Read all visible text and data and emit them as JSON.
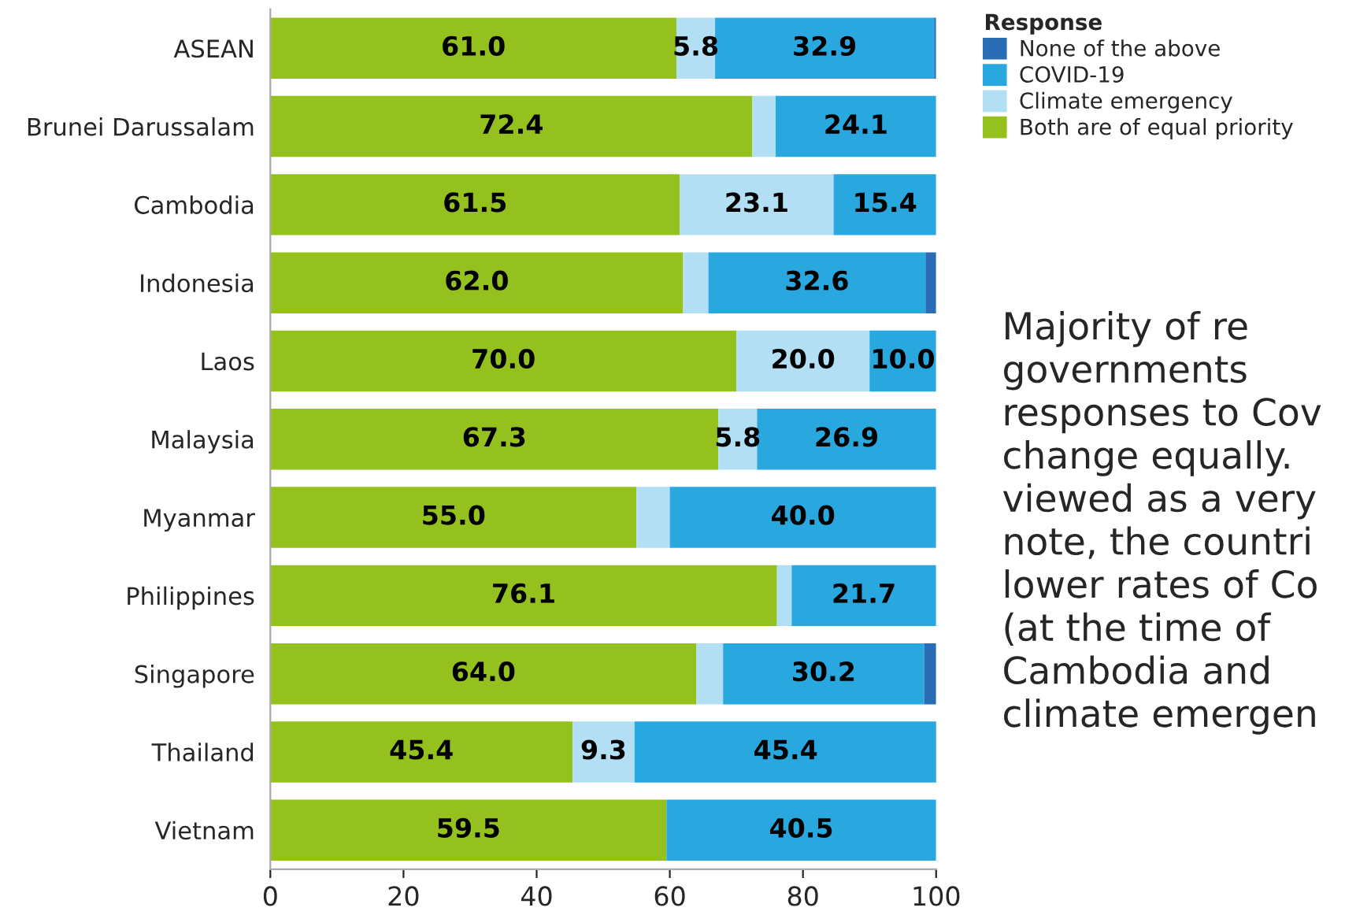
{
  "chart_data": {
    "type": "bar",
    "orientation": "horizontal",
    "stacked": true,
    "categories": [
      "ASEAN",
      "Brunei Darussalam",
      "Cambodia",
      "Indonesia",
      "Laos",
      "Malaysia",
      "Myanmar",
      "Philippines",
      "Singapore",
      "Thailand",
      "Vietnam"
    ],
    "series": [
      {
        "name": "Both are of equal priority",
        "color": "#95c11f",
        "values": [
          61.0,
          72.4,
          61.5,
          62.0,
          70.0,
          67.3,
          55.0,
          76.1,
          64.0,
          45.4,
          59.5
        ],
        "value_labels": [
          "61.0",
          "72.4",
          "61.5",
          "62.0",
          "70.0",
          "67.3",
          "55.0",
          "76.1",
          "64.0",
          "45.4",
          "59.5"
        ]
      },
      {
        "name": "Climate emergency",
        "color": "#b3dff5",
        "values": [
          5.8,
          3.5,
          23.1,
          3.8,
          20.0,
          5.8,
          5.0,
          2.2,
          4.0,
          9.3,
          0
        ],
        "value_labels": [
          "5.8",
          null,
          "23.1",
          null,
          "20.0",
          "5.8",
          null,
          null,
          null,
          "9.3",
          null
        ]
      },
      {
        "name": "COVID-19",
        "color": "#29a8e0",
        "values": [
          32.9,
          24.1,
          15.4,
          32.6,
          10.0,
          26.9,
          40.0,
          21.7,
          30.2,
          45.4,
          40.5
        ],
        "value_labels": [
          "32.9",
          "24.1",
          "15.4",
          "32.6",
          "10.0",
          "26.9",
          "40.0",
          "21.7",
          "30.2",
          "45.4",
          "40.5"
        ]
      },
      {
        "name": "None of the above",
        "color": "#2a6db5",
        "values": [
          0.3,
          0,
          0,
          1.6,
          0,
          0,
          0,
          0,
          1.8,
          0,
          0
        ]
      }
    ],
    "xlim": [
      0,
      100
    ],
    "xticks": [
      0,
      20,
      40,
      60,
      80,
      100
    ],
    "legend": "top right",
    "legend_title": "Response",
    "grid": false,
    "annotations": [
      "Majority of re\ngovernments\nresponses to Cov\nchange equally.\nviewed as a very\nnote, the countri\nlower rates of Co\n(at the time of\nCambodia and\nclimate emergen"
    ]
  }
}
